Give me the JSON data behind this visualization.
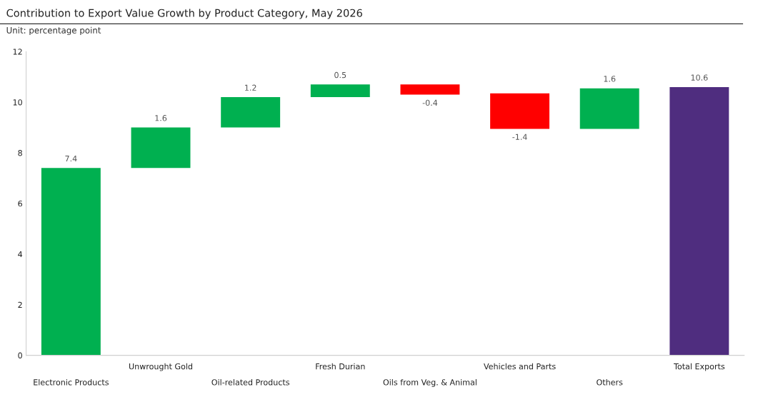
{
  "chart_data": {
    "type": "bar",
    "title": "Contribution to Export Value Growth by Product Category, May 2026",
    "subtitle": "Unit: percentage point",
    "categories": [
      "Electronic Products",
      "Unwrought Gold",
      "Oil-related Products",
      "Fresh Durian",
      "Oils from Veg. & Animal",
      "Vehicles and Parts",
      "Others",
      "Total Exports"
    ],
    "values": [
      7.4,
      1.6,
      1.2,
      0.5,
      -0.4,
      -1.4,
      1.6,
      10.6
    ],
    "base": [
      0,
      7.4,
      9.0,
      10.2,
      10.7,
      10.35,
      8.95,
      0
    ],
    "colors": [
      "#00b050",
      "#00b050",
      "#00b050",
      "#00b050",
      "#ff0000",
      "#ff0000",
      "#00b050",
      "#4f2d7f"
    ],
    "ylim": [
      0,
      12
    ],
    "yticks": [
      0,
      2,
      4,
      6,
      8,
      10,
      12
    ],
    "data_labels": true,
    "grid": false,
    "legend": false
  }
}
